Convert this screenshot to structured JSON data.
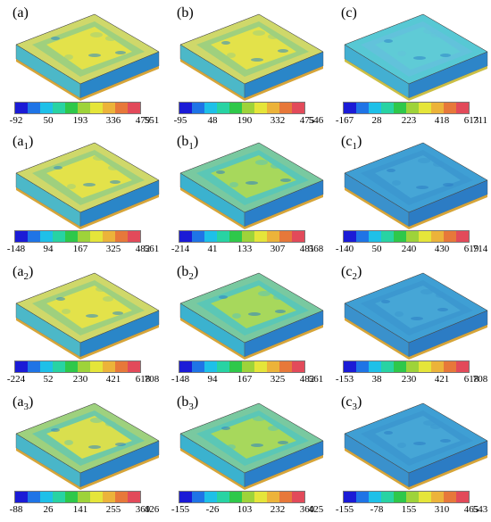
{
  "colorbar_colors": [
    "#1b1bd6",
    "#1f74e6",
    "#1ec0e8",
    "#28d3a3",
    "#2ec84a",
    "#9ed33a",
    "#e5e53a",
    "#ecb33a",
    "#e7783a",
    "#e24a5a"
  ],
  "panels": [
    {
      "letter": "a",
      "sub": "",
      "ticks": [
        "-92",
        "50",
        "193",
        "336",
        "479",
        "551"
      ],
      "variant": "yellow"
    },
    {
      "letter": "b",
      "sub": "",
      "ticks": [
        "-95",
        "48",
        "190",
        "332",
        "475",
        "546"
      ],
      "variant": "yellow"
    },
    {
      "letter": "c",
      "sub": "",
      "ticks": [
        "-167",
        "28",
        "223",
        "418",
        "613",
        "711"
      ],
      "variant": "cyan"
    },
    {
      "letter": "a",
      "sub": "1",
      "ticks": [
        "-148",
        "94",
        "167",
        "325",
        "482",
        "561"
      ],
      "variant": "yellow"
    },
    {
      "letter": "b",
      "sub": "1",
      "ticks": [
        "-214",
        "41",
        "133",
        "307",
        "481",
        "568"
      ],
      "variant": "green"
    },
    {
      "letter": "c",
      "sub": "1",
      "ticks": [
        "-140",
        "50",
        "240",
        "430",
        "619",
        "714"
      ],
      "variant": "blue"
    },
    {
      "letter": "a",
      "sub": "2",
      "ticks": [
        "-224",
        "52",
        "230",
        "421",
        "618",
        "708"
      ],
      "variant": "yellow"
    },
    {
      "letter": "b",
      "sub": "2",
      "ticks": [
        "-148",
        "94",
        "167",
        "325",
        "482",
        "561"
      ],
      "variant": "green"
    },
    {
      "letter": "c",
      "sub": "2",
      "ticks": [
        "-153",
        "38",
        "230",
        "421",
        "618",
        "708"
      ],
      "variant": "blue"
    },
    {
      "letter": "a",
      "sub": "3",
      "ticks": [
        "-88",
        "26",
        "141",
        "255",
        "369",
        "426"
      ],
      "variant": "mixed"
    },
    {
      "letter": "b",
      "sub": "3",
      "ticks": [
        "-155",
        "-26",
        "103",
        "232",
        "360",
        "425"
      ],
      "variant": "green"
    },
    {
      "letter": "c",
      "sub": "3",
      "ticks": [
        "-155",
        "-78",
        "155",
        "310",
        "465",
        "543"
      ],
      "variant": "blue"
    }
  ]
}
